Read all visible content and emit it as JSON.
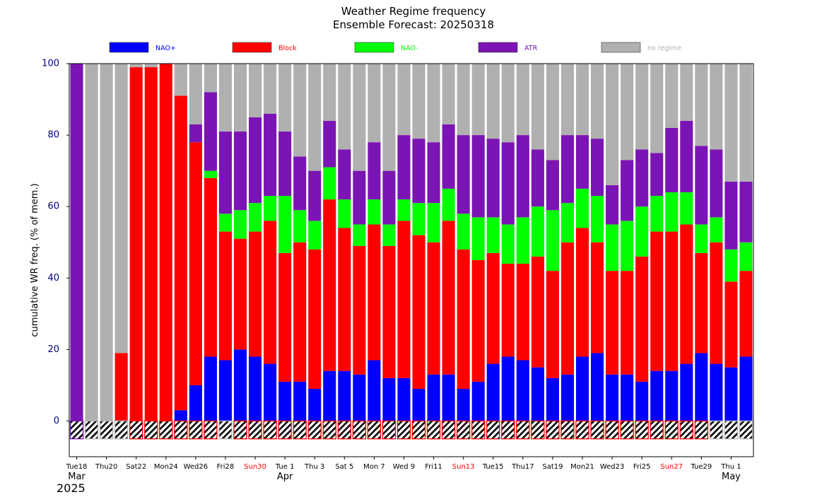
{
  "chart_data": {
    "type": "bar",
    "stacked": true,
    "title": "Weather Regime frequency",
    "subtitle": "Ensemble Forecast: 20250318",
    "ylabel": "cumulative WR freq. (% of mem.)",
    "ylim": [
      -10,
      100
    ],
    "yticks": [
      "0",
      "20",
      "40",
      "60",
      "80",
      "100"
    ],
    "series": [
      {
        "name": "NAO+",
        "color": "#0000ff",
        "label_color": "#0000ff",
        "values": [
          0,
          0,
          0,
          0,
          0,
          0,
          0,
          3,
          10,
          18,
          17,
          20,
          18,
          16,
          11,
          11,
          9,
          14,
          14,
          13,
          17,
          12,
          12,
          9,
          13,
          13,
          9,
          11,
          16,
          18,
          17,
          15,
          12,
          13,
          18,
          19,
          13,
          13,
          11,
          14,
          14,
          16,
          19,
          16,
          15,
          18
        ]
      },
      {
        "name": "Block",
        "color": "#ff0000",
        "label_color": "#ff0000",
        "values": [
          0,
          0,
          0,
          19,
          99,
          99,
          100,
          88,
          68,
          50,
          36,
          31,
          35,
          40,
          36,
          39,
          39,
          48,
          40,
          36,
          38,
          37,
          44,
          43,
          37,
          43,
          39,
          34,
          31,
          26,
          27,
          31,
          30,
          37,
          36,
          31,
          29,
          29,
          35,
          39,
          39,
          39,
          28,
          34,
          24,
          24
        ]
      },
      {
        "name": "NAO-",
        "color": "#00ff00",
        "label_color": "#00ff00",
        "values": [
          0,
          0,
          0,
          0,
          0,
          0,
          0,
          0,
          0,
          2,
          5,
          8,
          8,
          7,
          16,
          9,
          8,
          9,
          8,
          6,
          7,
          6,
          6,
          9,
          11,
          9,
          10,
          12,
          10,
          11,
          13,
          14,
          17,
          11,
          11,
          13,
          13,
          14,
          14,
          10,
          11,
          9,
          8,
          7,
          9,
          8
        ]
      },
      {
        "name": "ATR",
        "color": "#7b14b4",
        "label_color": "#7b14b4",
        "values": [
          100,
          0,
          0,
          0,
          0,
          0,
          0,
          0,
          5,
          22,
          23,
          22,
          24,
          23,
          18,
          15,
          14,
          13,
          14,
          15,
          16,
          15,
          18,
          18,
          17,
          18,
          22,
          23,
          22,
          23,
          23,
          16,
          14,
          19,
          15,
          16,
          11,
          17,
          16,
          12,
          18,
          20,
          22,
          19,
          19,
          17
        ]
      },
      {
        "name": "no regime",
        "color": "#b0b0b0",
        "label_color": "#b0b0b0",
        "values": [
          0,
          100,
          100,
          81,
          1,
          1,
          0,
          9,
          17,
          8,
          19,
          19,
          15,
          14,
          19,
          26,
          30,
          16,
          24,
          30,
          22,
          30,
          20,
          21,
          22,
          17,
          20,
          20,
          21,
          22,
          20,
          24,
          27,
          20,
          20,
          21,
          34,
          27,
          24,
          25,
          18,
          16,
          23,
          24,
          33,
          33
        ]
      }
    ],
    "indicator_colors": [
      "#7b14b4",
      "#b0b0b0",
      "#b0b0b0",
      "#b0b0b0",
      "#ff0000",
      "#ff0000",
      "#ff0000",
      "#ff0000",
      "#ff0000",
      "#ff0000",
      "#b0b0b0",
      "#ff0000",
      "#ff0000",
      "#ff0000",
      "#ff0000",
      "#ff0000",
      "#ff0000",
      "#ff0000",
      "#ff0000",
      "#ff0000",
      "#ff0000",
      "#ff0000",
      "#ff0000",
      "#ff0000",
      "#ff0000",
      "#ff0000",
      "#ff0000",
      "#ff0000",
      "#ff0000",
      "#ff0000",
      "#ff0000",
      "#ff0000",
      "#ff0000",
      "#ff0000",
      "#ff0000",
      "#ff0000",
      "#ff0000",
      "#ff0000",
      "#ff0000",
      "#ff0000",
      "#ff0000",
      "#ff0000",
      "#ff0000",
      "#b0b0b0",
      "#b0b0b0",
      "#b0b0b0"
    ],
    "x_ticks": [
      {
        "label": "Tue18",
        "color": "#000000"
      },
      {
        "label": "Thu20",
        "color": "#000000"
      },
      {
        "label": "Sat22",
        "color": "#000000"
      },
      {
        "label": "Mon24",
        "color": "#000000"
      },
      {
        "label": "Wed26",
        "color": "#000000"
      },
      {
        "label": "Fri28",
        "color": "#000000"
      },
      {
        "label": "Sun30",
        "color": "#ff0000"
      },
      {
        "label": "Tue 1",
        "color": "#000000"
      },
      {
        "label": "Thu 3",
        "color": "#000000"
      },
      {
        "label": "Sat 5",
        "color": "#000000"
      },
      {
        "label": "Mon 7",
        "color": "#000000"
      },
      {
        "label": "Wed 9",
        "color": "#000000"
      },
      {
        "label": "Fri11",
        "color": "#000000"
      },
      {
        "label": "Sun13",
        "color": "#ff0000"
      },
      {
        "label": "Tue15",
        "color": "#000000"
      },
      {
        "label": "Thu17",
        "color": "#000000"
      },
      {
        "label": "Sat19",
        "color": "#000000"
      },
      {
        "label": "Mon21",
        "color": "#000000"
      },
      {
        "label": "Wed23",
        "color": "#000000"
      },
      {
        "label": "Fri25",
        "color": "#000000"
      },
      {
        "label": "Sun27",
        "color": "#ff0000"
      },
      {
        "label": "Tue29",
        "color": "#000000"
      },
      {
        "label": "Thu 1",
        "color": "#000000"
      }
    ],
    "month_labels": [
      "Mar",
      "Apr",
      "May"
    ],
    "year_label": "2025",
    "grid": false,
    "legend_position": "top"
  }
}
